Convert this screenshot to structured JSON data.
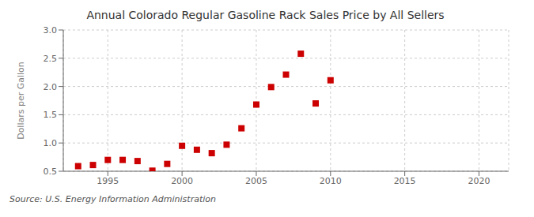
{
  "chart_data": {
    "type": "scatter",
    "title": "Annual Colorado Regular Gasoline Rack Sales Price by All Sellers",
    "y_label": "Dollars per Gallon",
    "annotations": [
      "Source: U.S. Energy Information Administration"
    ],
    "x": [
      1993,
      1994,
      1995,
      1996,
      1997,
      1998,
      1999,
      2000,
      2001,
      2002,
      2003,
      2004,
      2005,
      2006,
      2007,
      2008,
      2009,
      2010
    ],
    "values": [
      0.59,
      0.61,
      0.7,
      0.7,
      0.68,
      0.51,
      0.63,
      0.95,
      0.88,
      0.82,
      0.97,
      1.26,
      1.68,
      1.99,
      2.21,
      2.58,
      1.7,
      2.11
    ],
    "color": "#cc0000",
    "marker": "square",
    "xlim": [
      1992,
      2022
    ],
    "ylim": [
      0.5,
      3.0
    ],
    "xticks": [
      1995,
      2000,
      2005,
      2010,
      2015,
      2020
    ],
    "yticks": [
      0.5,
      {
        "value": 1,
        "label": "1.0"
      },
      1.5,
      {
        "value": 2,
        "label": "2.0"
      },
      2.5,
      {
        "value": 3,
        "label": "3.0"
      }
    ],
    "grid": true
  }
}
